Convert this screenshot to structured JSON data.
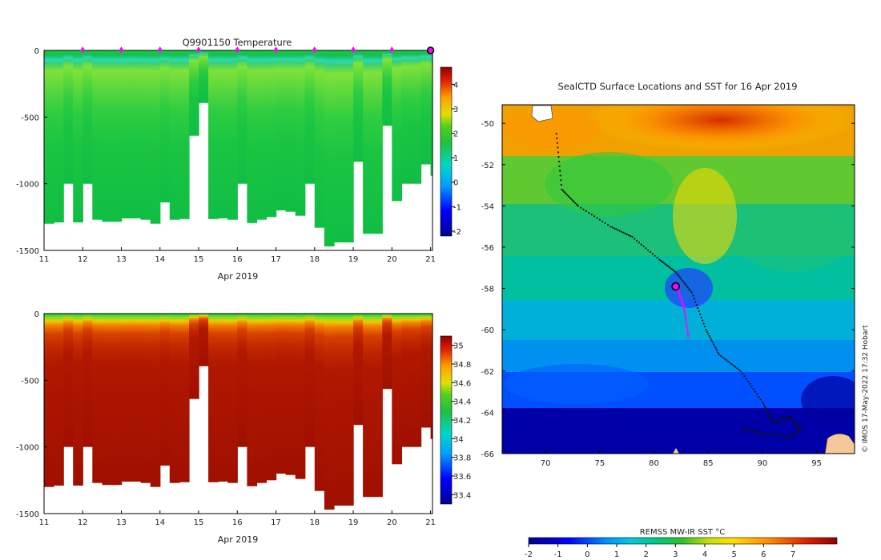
{
  "chart_data": [
    {
      "type": "heatmap",
      "name": "temperature-section",
      "title": "Q9901150  Temperature",
      "xlabel": "Apr 2019",
      "x_ticks": [
        "11",
        "12",
        "13",
        "14",
        "15",
        "16",
        "17",
        "18",
        "19",
        "20",
        "21"
      ],
      "xlim": [
        11,
        21.05
      ],
      "ylim": [
        -1500,
        0
      ],
      "y_ticks": [
        "0",
        "-500",
        "-1000",
        "-1500"
      ],
      "colorbar": {
        "ticks": [
          "4",
          "3",
          "2",
          "1",
          "0",
          "-1",
          "-2"
        ],
        "range": [
          -2.2,
          4.7
        ]
      },
      "profile_days": [
        11.0,
        11.25,
        11.5,
        11.75,
        12.0,
        12.25,
        12.5,
        12.75,
        13.0,
        13.25,
        13.5,
        13.75,
        14.0,
        14.25,
        14.5,
        14.75,
        15.0,
        15.25,
        15.5,
        15.75,
        16.0,
        16.25,
        16.5,
        16.75,
        17.0,
        17.25,
        17.5,
        17.75,
        18.0,
        18.25,
        18.5,
        18.75,
        19.0,
        19.25,
        19.5,
        19.75,
        20.0,
        20.25,
        20.5,
        20.75,
        21.0
      ],
      "profile_depths": [
        1300,
        1290,
        1000,
        1290,
        1000,
        1270,
        1285,
        1285,
        1260,
        1260,
        1270,
        1300,
        1140,
        1270,
        1265,
        640,
        395,
        1265,
        1260,
        1270,
        1000,
        1295,
        1270,
        1250,
        1200,
        1210,
        1240,
        1000,
        1330,
        1470,
        1440,
        1440,
        835,
        1375,
        1375,
        565,
        1130,
        1000,
        1000,
        855,
        940
      ],
      "marker_days": [
        12,
        13,
        14,
        15,
        16,
        17,
        18,
        19,
        20
      ],
      "current_day": 21.0
    },
    {
      "type": "heatmap",
      "name": "salinity-section",
      "xlabel": "Apr 2019",
      "x_ticks": [
        "11",
        "12",
        "13",
        "14",
        "15",
        "16",
        "17",
        "18",
        "19",
        "20",
        "21"
      ],
      "ylim": [
        -1500,
        0
      ],
      "y_ticks": [
        "0",
        "-500",
        "-1000",
        "-1500"
      ],
      "colorbar": {
        "ticks": [
          "35",
          "34.8",
          "34.6",
          "34.4",
          "34.2",
          "34",
          "33.8",
          "33.6",
          "33.4"
        ],
        "range": [
          33.3,
          35.1
        ]
      }
    },
    {
      "type": "heatmap",
      "name": "sst-map",
      "title": "SealCTD Surface Locations and SST for 16 Apr 2019",
      "x_ticks": [
        "70",
        "75",
        "80",
        "85",
        "90",
        "95"
      ],
      "y_ticks": [
        "-50",
        "-52",
        "-54",
        "-56",
        "-58",
        "-60",
        "-62",
        "-64",
        "-66"
      ],
      "xlim": [
        66,
        98.5
      ],
      "ylim": [
        -66,
        -49.1
      ],
      "colorbar": {
        "label": "REMSS MW-IR SST °C",
        "ticks": [
          "-2",
          "-1",
          "0",
          "1",
          "2",
          "3",
          "4",
          "5",
          "6",
          "7"
        ],
        "range": [
          -2,
          8.5
        ]
      },
      "track": [
        [
          71,
          -50.5
        ],
        [
          71.5,
          -53.2
        ],
        [
          73,
          -54
        ],
        [
          76,
          -55
        ],
        [
          78,
          -55.5
        ],
        [
          80.5,
          -56.6
        ],
        [
          82,
          -57.2
        ],
        [
          83.5,
          -58.2
        ],
        [
          84.8,
          -60
        ],
        [
          86,
          -61.2
        ],
        [
          88,
          -62
        ],
        [
          90,
          -63.5
        ],
        [
          91,
          -64.5
        ],
        [
          92.5,
          -64.2
        ],
        [
          93.5,
          -64.8
        ],
        [
          92.5,
          -65.2
        ],
        [
          90,
          -65
        ],
        [
          88,
          -64.8
        ]
      ],
      "recent_track": [
        [
          82.2,
          -58
        ],
        [
          82.8,
          -59
        ],
        [
          83.2,
          -60.5
        ]
      ],
      "current_location": [
        82,
        -57.9
      ],
      "credit": "© IMOS 17-May-2022 17:32 Hobart"
    }
  ]
}
